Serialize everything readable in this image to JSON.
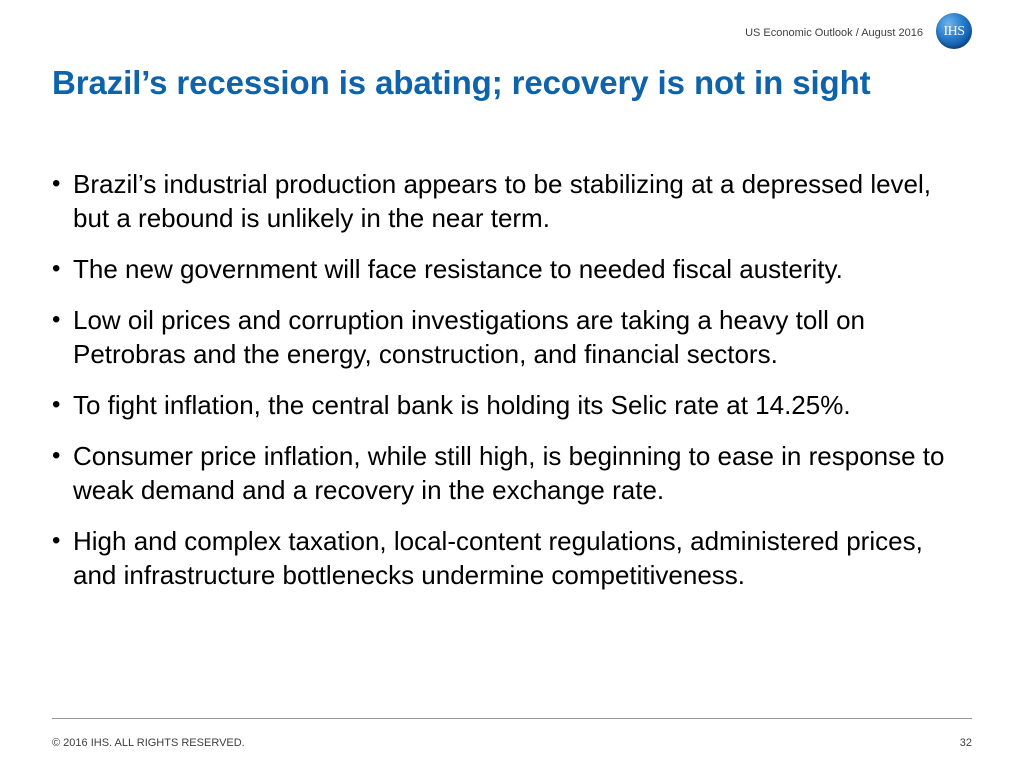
{
  "header": {
    "meta": "US Economic Outlook / August 2016",
    "logo_text": "IHS"
  },
  "slide": {
    "title": "Brazil’s recession is abating; recovery is not in sight",
    "bullets": [
      "Brazil’s industrial production appears to be stabilizing at a depressed level, but a rebound is unlikely in the near term.",
      "The new government will face resistance to needed fiscal austerity.",
      "Low oil prices and corruption investigations are taking a heavy toll on Petrobras and the energy, construction, and financial sectors.",
      "To fight inflation, the central bank is holding its Selic rate at 14.25%.",
      "Consumer price inflation, while still high, is beginning to ease in response to weak demand and a recovery in the exchange rate.",
      "High and complex taxation, local-content regulations, administered prices, and infrastructure bottlenecks undermine competitiveness."
    ],
    "bullet_symbol": "•"
  },
  "footer": {
    "copyright": "© 2016 IHS. ALL RIGHTS RESERVED.",
    "page_number": "32"
  },
  "colors": {
    "title": "#0e63aa",
    "body_text": "#000000",
    "meta_text": "#404040",
    "rule": "#9a9a9a",
    "logo": "#0b4f9a"
  }
}
